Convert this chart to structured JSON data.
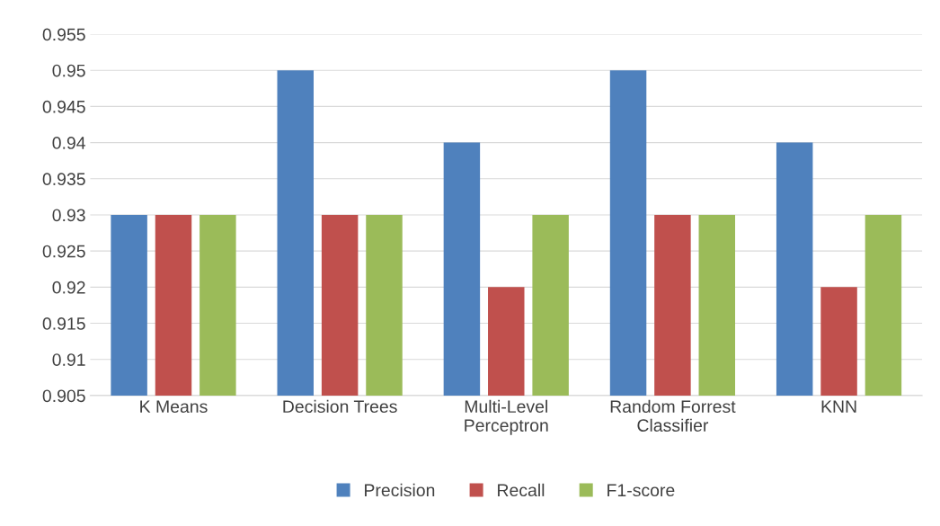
{
  "chart_data": {
    "type": "bar",
    "categories": [
      "K Means",
      "Decision Trees",
      "Multi-Level\nPerceptron",
      "Random Forrest\nClassifier",
      "KNN"
    ],
    "series": [
      {
        "name": "Precision",
        "color": "#4f81bd",
        "values": [
          0.93,
          0.95,
          0.94,
          0.95,
          0.94
        ]
      },
      {
        "name": "Recall",
        "color": "#c0504d",
        "values": [
          0.93,
          0.93,
          0.92,
          0.93,
          0.92
        ]
      },
      {
        "name": "F1-score",
        "color": "#9bbb59",
        "values": [
          0.93,
          0.93,
          0.93,
          0.93,
          0.93
        ]
      }
    ],
    "ylim": [
      0.905,
      0.955
    ],
    "yticks": [
      {
        "value": 0.905,
        "label": "0.905"
      },
      {
        "value": 0.91,
        "label": "0.91"
      },
      {
        "value": 0.915,
        "label": "0.915"
      },
      {
        "value": 0.92,
        "label": "0.92"
      },
      {
        "value": 0.925,
        "label": "0.925"
      },
      {
        "value": 0.93,
        "label": "0.93"
      },
      {
        "value": 0.935,
        "label": "0.935"
      },
      {
        "value": 0.94,
        "label": "0.94"
      },
      {
        "value": 0.945,
        "label": "0.945"
      },
      {
        "value": 0.95,
        "label": "0.95"
      },
      {
        "value": 0.955,
        "label": "0.955"
      }
    ],
    "grid": "y",
    "legend": "bottom"
  }
}
